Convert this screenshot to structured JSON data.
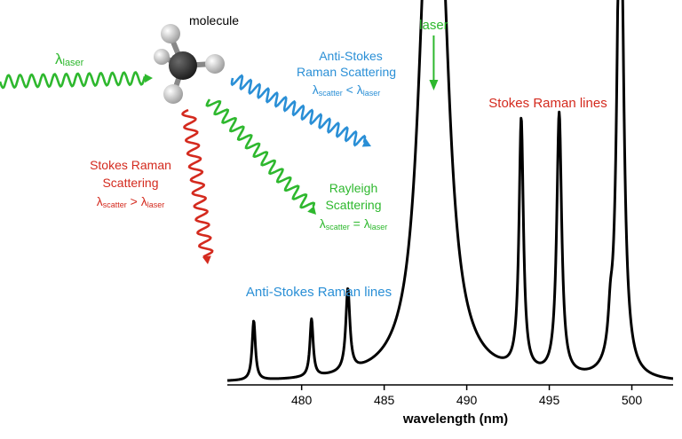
{
  "colors": {
    "laser": "#2eb82e",
    "anti_stokes": "#2a8fd6",
    "stokes": "#d42a1e",
    "spectrum": "#000000",
    "molecule_carbon": "#3a3a3a",
    "molecule_hydrogen": "#e8e8e8"
  },
  "diagram": {
    "molecule_label": "molecule",
    "incident": {
      "symbol": "λ",
      "subscript": "laser"
    },
    "anti_stokes_scattering": {
      "line1": "Anti-Stokes",
      "line2": "Raman Scattering",
      "relation": {
        "lhs_symbol": "λ",
        "lhs_sub": "scatter",
        "op": " < ",
        "rhs_symbol": "λ",
        "rhs_sub": "laser"
      }
    },
    "rayleigh_scattering": {
      "line1": "Rayleigh",
      "line2": "Scattering",
      "relation": {
        "lhs_symbol": "λ",
        "lhs_sub": "scatter",
        "op": " = ",
        "rhs_symbol": "λ",
        "rhs_sub": "laser"
      }
    },
    "stokes_scattering": {
      "line1": "Stokes Raman",
      "line2": "Scattering",
      "relation": {
        "lhs_symbol": "λ",
        "lhs_sub": "scatter",
        "op": " > ",
        "rhs_symbol": "λ",
        "rhs_sub": "laser"
      }
    }
  },
  "chart_data": {
    "type": "line",
    "xlabel": "wavelength (nm)",
    "ylabel": "",
    "xlim": [
      475.5,
      502.5
    ],
    "ylim": [
      0,
      1
    ],
    "x_ticks": [
      480,
      485,
      490,
      495,
      500
    ],
    "x_tick_labels": [
      "480",
      "485",
      "490",
      "495",
      "500"
    ],
    "grid": false,
    "baseline": 0.005,
    "annotations": {
      "laser": "laser",
      "stokes_lines": "Stokes Raman lines",
      "anti_stokes_lines": "Anti-Stokes Raman lines"
    },
    "peaks": [
      {
        "center": 477.1,
        "height": 0.17,
        "width": 0.12
      },
      {
        "center": 480.6,
        "height": 0.165,
        "width": 0.12
      },
      {
        "center": 482.8,
        "height": 0.235,
        "width": 0.15
      },
      {
        "center": 487.6,
        "height": 0.98,
        "width": 0.7
      },
      {
        "center": 488.4,
        "height": 0.98,
        "width": 0.7
      },
      {
        "center": 493.3,
        "height": 0.72,
        "width": 0.16
      },
      {
        "center": 495.6,
        "height": 0.75,
        "width": 0.18
      },
      {
        "center": 498.7,
        "height": 0.09,
        "width": 0.15
      },
      {
        "center": 499.3,
        "height": 1.6,
        "width": 0.22
      }
    ]
  }
}
